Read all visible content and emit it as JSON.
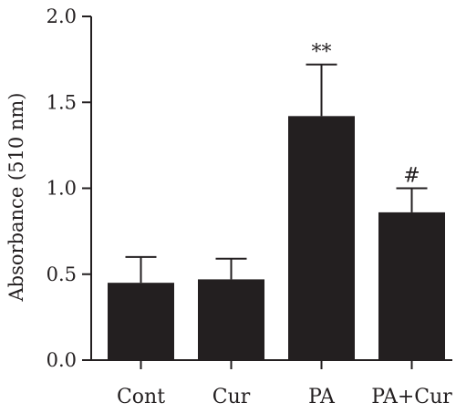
{
  "chart_data": {
    "type": "bar",
    "categories": [
      "Cont",
      "Cur",
      "PA",
      "PA+Cur"
    ],
    "values": [
      0.45,
      0.47,
      1.42,
      0.86
    ],
    "errors": [
      0.15,
      0.12,
      0.3,
      0.14
    ],
    "annotations": [
      "",
      "",
      "**",
      "#"
    ],
    "ylabel": "Absorbance (510 nm)",
    "xlabel": "",
    "ylim": [
      0.0,
      2.0
    ],
    "yticks": [
      "0.0",
      "0.5",
      "1.0",
      "1.5",
      "2.0"
    ],
    "grid": false,
    "bar_color": "#231f20"
  }
}
